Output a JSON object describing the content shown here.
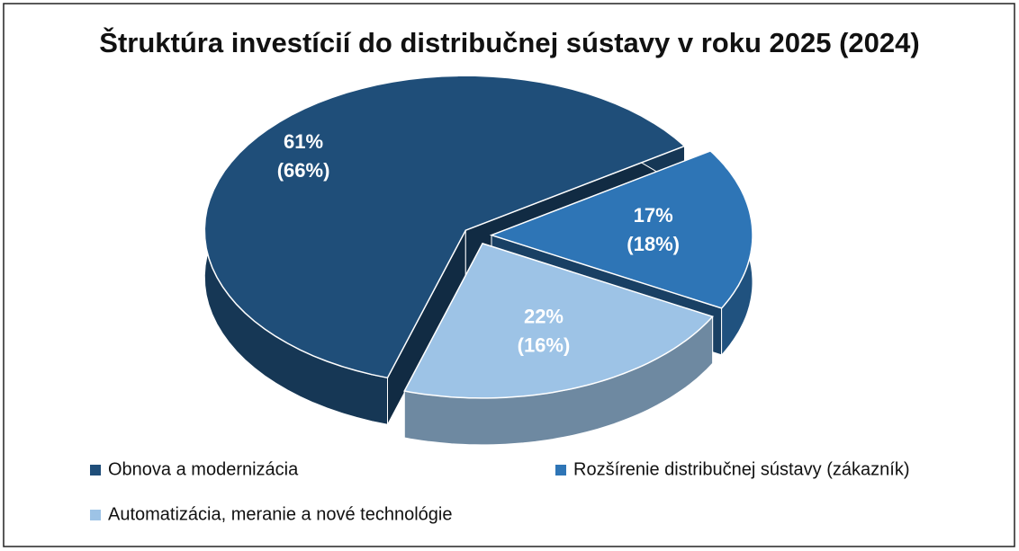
{
  "chart_data": {
    "type": "pie",
    "title": "Štruktúra investícií do distribučnej sústavy v roku 2025 (2024)",
    "categories": [
      "Obnova a modernizácia",
      "Rozšírenie distribučnej sústavy (zákazník)",
      "Automatizácia, meranie a nové technológie"
    ],
    "values": [
      61,
      17,
      22
    ],
    "value_labels": [
      "61%",
      "17%",
      "22%"
    ],
    "previous_values": [
      66,
      18,
      16
    ],
    "previous_value_labels": [
      "(66%)",
      "(18%)",
      "(16%)"
    ],
    "colors": [
      "#1f4e79",
      "#2e75b6",
      "#9dc3e6"
    ],
    "legend": "bottom"
  }
}
